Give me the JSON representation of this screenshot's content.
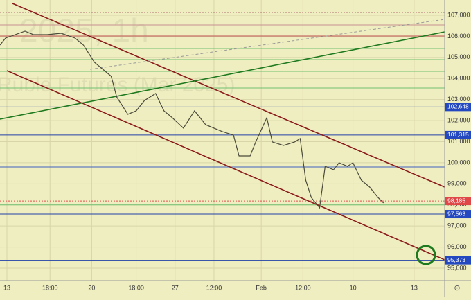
{
  "chart_data": {
    "type": "line",
    "watermark_title": "2025, 1h",
    "watermark_subtitle": "Ruble Futures (Mar 2025)",
    "background": "#efeec0",
    "xlim": [
      0,
      160
    ],
    "ylim": [
      94408,
      107723
    ],
    "xticks": [
      {
        "value": 2.5,
        "label": "13"
      },
      {
        "value": 18,
        "label": "18:00"
      },
      {
        "value": 33,
        "label": "20"
      },
      {
        "value": 49,
        "label": "18:00"
      },
      {
        "value": 63,
        "label": "27"
      },
      {
        "value": 77,
        "label": "12:00"
      },
      {
        "value": 94,
        "label": "Feb"
      },
      {
        "value": 109,
        "label": "12:00"
      },
      {
        "value": 127,
        "label": "10"
      },
      {
        "value": 149,
        "label": "13"
      }
    ],
    "yticks": [
      {
        "value": 95000,
        "label": "95,000"
      },
      {
        "value": 96000,
        "label": "96,000"
      },
      {
        "value": 97000,
        "label": "97,000"
      },
      {
        "value": 98000,
        "label": "98,000"
      },
      {
        "value": 99000,
        "label": "99,000"
      },
      {
        "value": 100000,
        "label": "100,000"
      },
      {
        "value": 101000,
        "label": "101,000"
      },
      {
        "value": 102000,
        "label": "102,000"
      },
      {
        "value": 103000,
        "label": "103,000"
      },
      {
        "value": 104000,
        "label": "104,000"
      },
      {
        "value": 105000,
        "label": "105,000"
      },
      {
        "value": 106000,
        "label": "106,000"
      },
      {
        "value": 107000,
        "label": "107,000"
      }
    ],
    "grid": true,
    "series": [
      {
        "color": "#4a4a3a",
        "x": [
          0,
          2,
          9,
          12,
          17,
          22,
          27,
          30,
          34,
          37,
          40,
          42,
          46,
          49,
          52,
          56,
          59,
          62,
          66,
          70,
          74,
          80,
          84,
          86,
          90,
          92,
          96,
          98,
          102,
          106,
          108,
          110,
          112,
          115,
          117,
          120,
          122,
          125,
          127,
          130,
          133,
          136,
          138
        ],
        "values": [
          105587,
          105915,
          106244,
          106080,
          106080,
          106145,
          105915,
          105587,
          104765,
          104436,
          104107,
          103121,
          102299,
          102464,
          102957,
          103286,
          102464,
          102135,
          101642,
          102464,
          101806,
          101478,
          101313,
          100327,
          100327,
          100985,
          102135,
          100985,
          100820,
          100985,
          101149,
          99177,
          98355,
          97862,
          99834,
          99670,
          99999,
          99834,
          99999,
          99177,
          98848,
          98355,
          98092
        ]
      }
    ],
    "levels": [
      {
        "value": 107131,
        "color": "#b07070",
        "dashed": true
      },
      {
        "value": 106540,
        "color": "#c89090"
      },
      {
        "value": 106014,
        "color": "#c05050"
      },
      {
        "value": 105422,
        "color": "#70c070"
      },
      {
        "value": 104896,
        "color": "#70c070"
      },
      {
        "value": 104337,
        "color": "#70c070"
      },
      {
        "value": 103548,
        "color": "#70c070"
      },
      {
        "value": 102648,
        "label": "102,648",
        "color": "#2040a8",
        "label_color": "#2448c0"
      },
      {
        "value": 101315,
        "label": "101,315",
        "color": "#2040a8",
        "label_color": "#2448c0"
      },
      {
        "value": 99800,
        "color": "#4060c0"
      },
      {
        "value": 98185,
        "label": "98,185",
        "color": "#e05050",
        "label_color": "#e04848",
        "dashed": true
      },
      {
        "value": 98000,
        "color": "#70c070"
      },
      {
        "value": 97563,
        "label": "97,563",
        "color": "#2040a8",
        "label_color": "#2448c0"
      },
      {
        "value": 95373,
        "label": "95,373",
        "color": "#2040a8",
        "label_color": "#2448c0"
      }
    ],
    "trendlines": [
      {
        "x": [
          4.5,
          160
        ],
        "values": [
          107559,
          98847
        ],
        "color": "#8b1a1a"
      },
      {
        "x": [
          2.5,
          160
        ],
        "values": [
          104370,
          95396
        ],
        "color": "#8b1a1a"
      },
      {
        "x": [
          0,
          160
        ],
        "values": [
          102069,
          106211
        ],
        "color": "#1f7a1f"
      },
      {
        "x": [
          32.4,
          160
        ],
        "values": [
          104436,
          106803
        ],
        "color": "#999",
        "dashed": true
      }
    ]
  }
}
